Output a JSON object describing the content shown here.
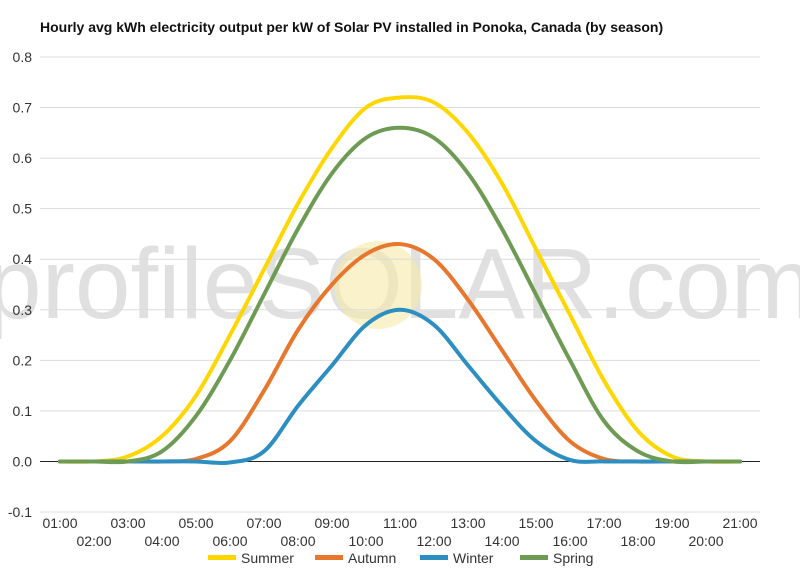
{
  "chart_data": {
    "type": "line",
    "title": "Hourly avg kWh electricity output per kW of Solar PV installed in Ponoka, Canada (by season)",
    "xlabel": "",
    "ylabel": "",
    "ylim": [
      -0.1,
      0.8
    ],
    "yticks": [
      "0.8",
      "0.7",
      "0.6",
      "0.5",
      "0.4",
      "0.3",
      "0.2",
      "0.1",
      "0.0",
      "-0.1"
    ],
    "x": [
      "01:00",
      "02:00",
      "03:00",
      "04:00",
      "05:00",
      "06:00",
      "07:00",
      "08:00",
      "09:00",
      "10:00",
      "11:00",
      "12:00",
      "13:00",
      "14:00",
      "15:00",
      "16:00",
      "17:00",
      "18:00",
      "19:00",
      "20:00",
      "21:00"
    ],
    "grid": true,
    "legend_position": "bottom",
    "watermark": "profileSOLAR.com",
    "series": [
      {
        "name": "Summer",
        "color": "#ffd700",
        "values": [
          0.0,
          0.0,
          0.01,
          0.05,
          0.13,
          0.25,
          0.38,
          0.51,
          0.62,
          0.7,
          0.72,
          0.71,
          0.65,
          0.55,
          0.42,
          0.29,
          0.16,
          0.06,
          0.01,
          0.0,
          0.0
        ]
      },
      {
        "name": "Autumn",
        "color": "#e8772e",
        "values": [
          0.0,
          0.0,
          0.0,
          0.0,
          0.005,
          0.04,
          0.14,
          0.26,
          0.35,
          0.41,
          0.43,
          0.4,
          0.32,
          0.22,
          0.12,
          0.04,
          0.005,
          0.0,
          0.0,
          0.0,
          0.0
        ]
      },
      {
        "name": "Winter",
        "color": "#2d8fc1",
        "values": [
          0.0,
          0.0,
          0.0,
          0.0,
          0.0,
          -0.002,
          0.02,
          0.11,
          0.19,
          0.27,
          0.3,
          0.27,
          0.19,
          0.11,
          0.04,
          0.003,
          0.0,
          0.0,
          0.0,
          0.0,
          0.0
        ]
      },
      {
        "name": "Spring",
        "color": "#6e9b54",
        "values": [
          0.0,
          0.0,
          0.0,
          0.02,
          0.09,
          0.2,
          0.33,
          0.46,
          0.57,
          0.64,
          0.66,
          0.64,
          0.57,
          0.46,
          0.33,
          0.2,
          0.08,
          0.02,
          0.0,
          0.0,
          0.0
        ]
      }
    ]
  }
}
